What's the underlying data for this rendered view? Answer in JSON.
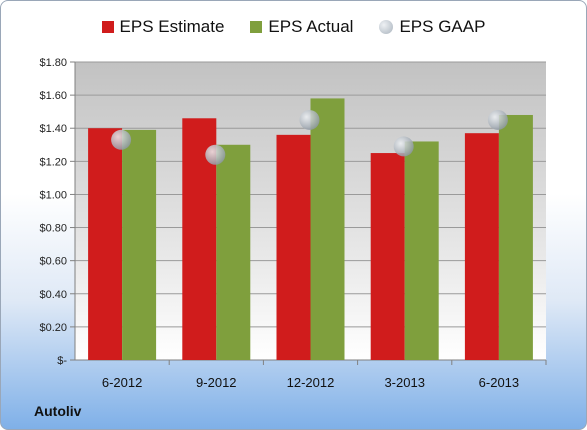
{
  "chart_data": {
    "type": "bar",
    "categories": [
      "6-2012",
      "9-2012",
      "12-2012",
      "3-2013",
      "6-2013"
    ],
    "series": [
      {
        "name": "EPS Estimate",
        "kind": "bar",
        "color": "#d01c1c",
        "values": [
          1.4,
          1.46,
          1.36,
          1.25,
          1.37
        ]
      },
      {
        "name": "EPS Actual",
        "kind": "bar",
        "color": "#7f9f3d",
        "values": [
          1.39,
          1.3,
          1.58,
          1.32,
          1.48
        ]
      },
      {
        "name": "EPS GAAP",
        "kind": "marker",
        "color": "#b9c2cc",
        "values": [
          1.33,
          1.24,
          1.45,
          1.29,
          1.45
        ]
      }
    ],
    "ylim": [
      0,
      1.8
    ],
    "yticks": [
      {
        "value": 0,
        "label": "$-"
      },
      {
        "value": 0.2,
        "label": "$0.20"
      },
      {
        "value": 0.4,
        "label": "$0.40"
      },
      {
        "value": 0.6,
        "label": "$0.60"
      },
      {
        "value": 0.8,
        "label": "$0.80"
      },
      {
        "value": 1.0,
        "label": "$1.00"
      },
      {
        "value": 1.2,
        "label": "$1.20"
      },
      {
        "value": 1.4,
        "label": "$1.40"
      },
      {
        "value": 1.6,
        "label": "$1.60"
      },
      {
        "value": 1.8,
        "label": "$1.80"
      }
    ],
    "grid": true,
    "legend_position": "top"
  },
  "company": "Autoliv"
}
